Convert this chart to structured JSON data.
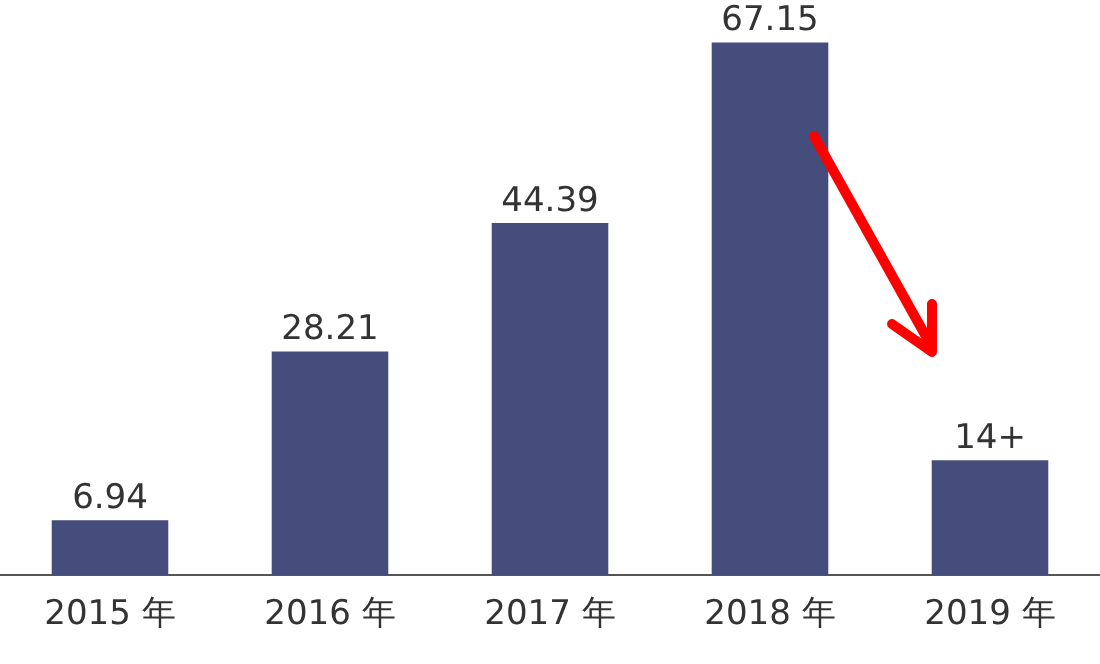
{
  "chart_data": {
    "type": "bar",
    "categories": [
      "2015 年",
      "2016 年",
      "2017 年",
      "2018 年",
      "2019 年"
    ],
    "values": [
      6.94,
      28.21,
      44.39,
      67.15,
      14.5
    ],
    "value_labels": [
      "6.94",
      "28.21",
      "44.39",
      "67.15",
      "14+"
    ],
    "color": "#454d7c",
    "grid": false,
    "legend": false,
    "tick_labels": "x"
  }
}
